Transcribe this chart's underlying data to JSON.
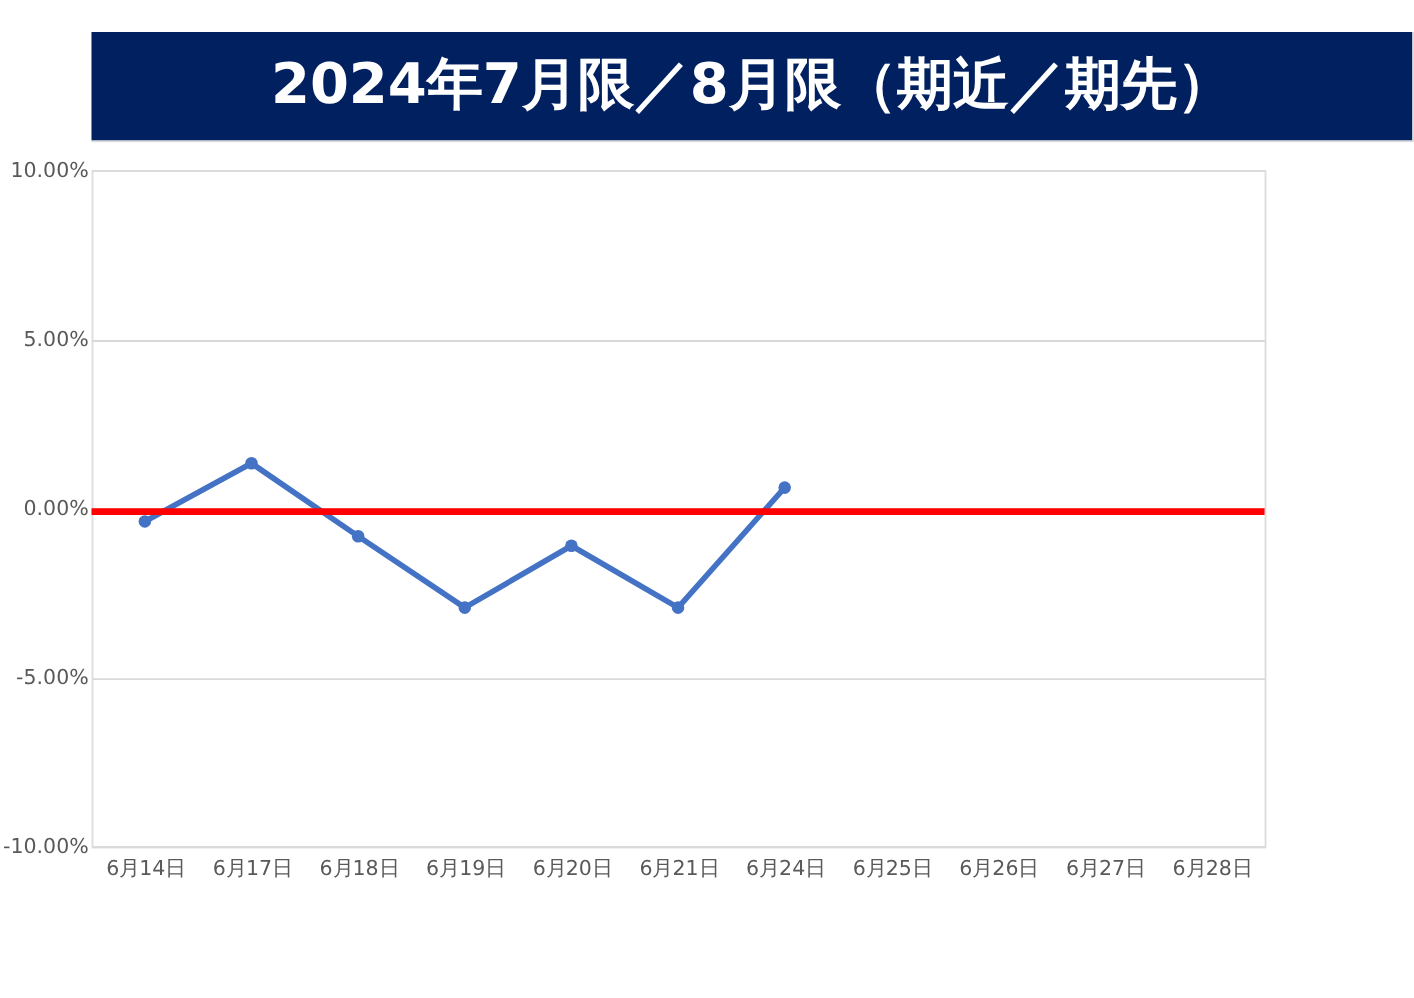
{
  "chart_data": {
    "type": "line",
    "title": "2024年7月限／8月限（期近／期先）",
    "categories": [
      "6月14日",
      "6月17日",
      "6月18日",
      "6月19日",
      "6月20日",
      "6月21日",
      "6月24日",
      "6月25日",
      "6月26日",
      "6月27日",
      "6月28日"
    ],
    "series": [
      {
        "color": "#4472c4",
        "values": [
          -0.39,
          1.33,
          -0.83,
          -2.94,
          -1.11,
          -2.94,
          0.61,
          null,
          null,
          null,
          null
        ]
      }
    ],
    "ylim": [
      -10,
      10
    ],
    "yticks": [
      {
        "value": -10,
        "label": "-10.00%"
      },
      {
        "value": -5,
        "label": "-5.00%"
      },
      {
        "value": 0,
        "label": "0.00%"
      },
      {
        "value": 5,
        "label": "5.00%"
      },
      {
        "value": 10,
        "label": "10.00%"
      }
    ],
    "ref_lines": [
      {
        "axis": "y",
        "value": -0.1,
        "color": "#ff0000",
        "line_style": "solid"
      }
    ],
    "grid": "y",
    "marker": "circle",
    "line_style": "solid",
    "legend": false
  }
}
